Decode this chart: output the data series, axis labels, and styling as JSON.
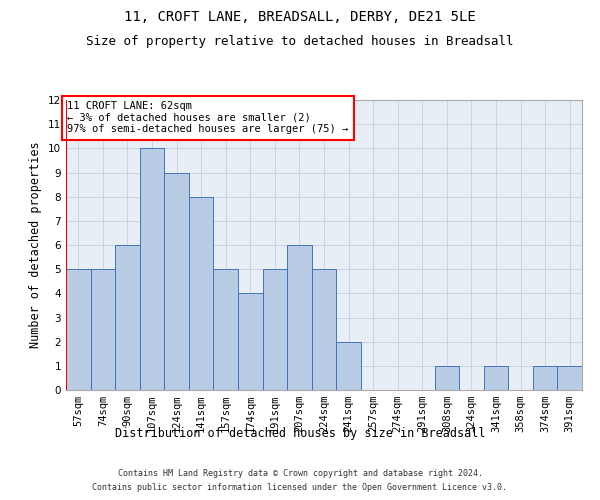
{
  "title": "11, CROFT LANE, BREADSALL, DERBY, DE21 5LE",
  "subtitle": "Size of property relative to detached houses in Breadsall",
  "xlabel": "Distribution of detached houses by size in Breadsall",
  "ylabel": "Number of detached properties",
  "bin_labels": [
    "57sqm",
    "74sqm",
    "90sqm",
    "107sqm",
    "124sqm",
    "141sqm",
    "157sqm",
    "174sqm",
    "191sqm",
    "207sqm",
    "224sqm",
    "241sqm",
    "257sqm",
    "274sqm",
    "291sqm",
    "308sqm",
    "324sqm",
    "341sqm",
    "358sqm",
    "374sqm",
    "391sqm"
  ],
  "bar_values": [
    5,
    5,
    6,
    10,
    9,
    8,
    5,
    4,
    5,
    6,
    5,
    2,
    0,
    0,
    0,
    1,
    0,
    1,
    0,
    1,
    1
  ],
  "bar_color": "#b8cce4",
  "bar_edge_color": "#4472c4",
  "annotation_text": "11 CROFT LANE: 62sqm\n← 3% of detached houses are smaller (2)\n97% of semi-detached houses are larger (75) →",
  "annotation_box_color": "#ffffff",
  "annotation_box_edge": "#ff0000",
  "ylim": [
    0,
    12
  ],
  "yticks": [
    0,
    1,
    2,
    3,
    4,
    5,
    6,
    7,
    8,
    9,
    10,
    11,
    12
  ],
  "footer_line1": "Contains HM Land Registry data © Crown copyright and database right 2024.",
  "footer_line2": "Contains public sector information licensed under the Open Government Licence v3.0.",
  "bg_color": "#ffffff",
  "grid_color": "#c8d4e0",
  "title_fontsize": 10,
  "subtitle_fontsize": 9,
  "tick_fontsize": 7.5,
  "ylabel_fontsize": 8.5,
  "xlabel_fontsize": 8.5,
  "annotation_fontsize": 7.5,
  "footer_fontsize": 6
}
